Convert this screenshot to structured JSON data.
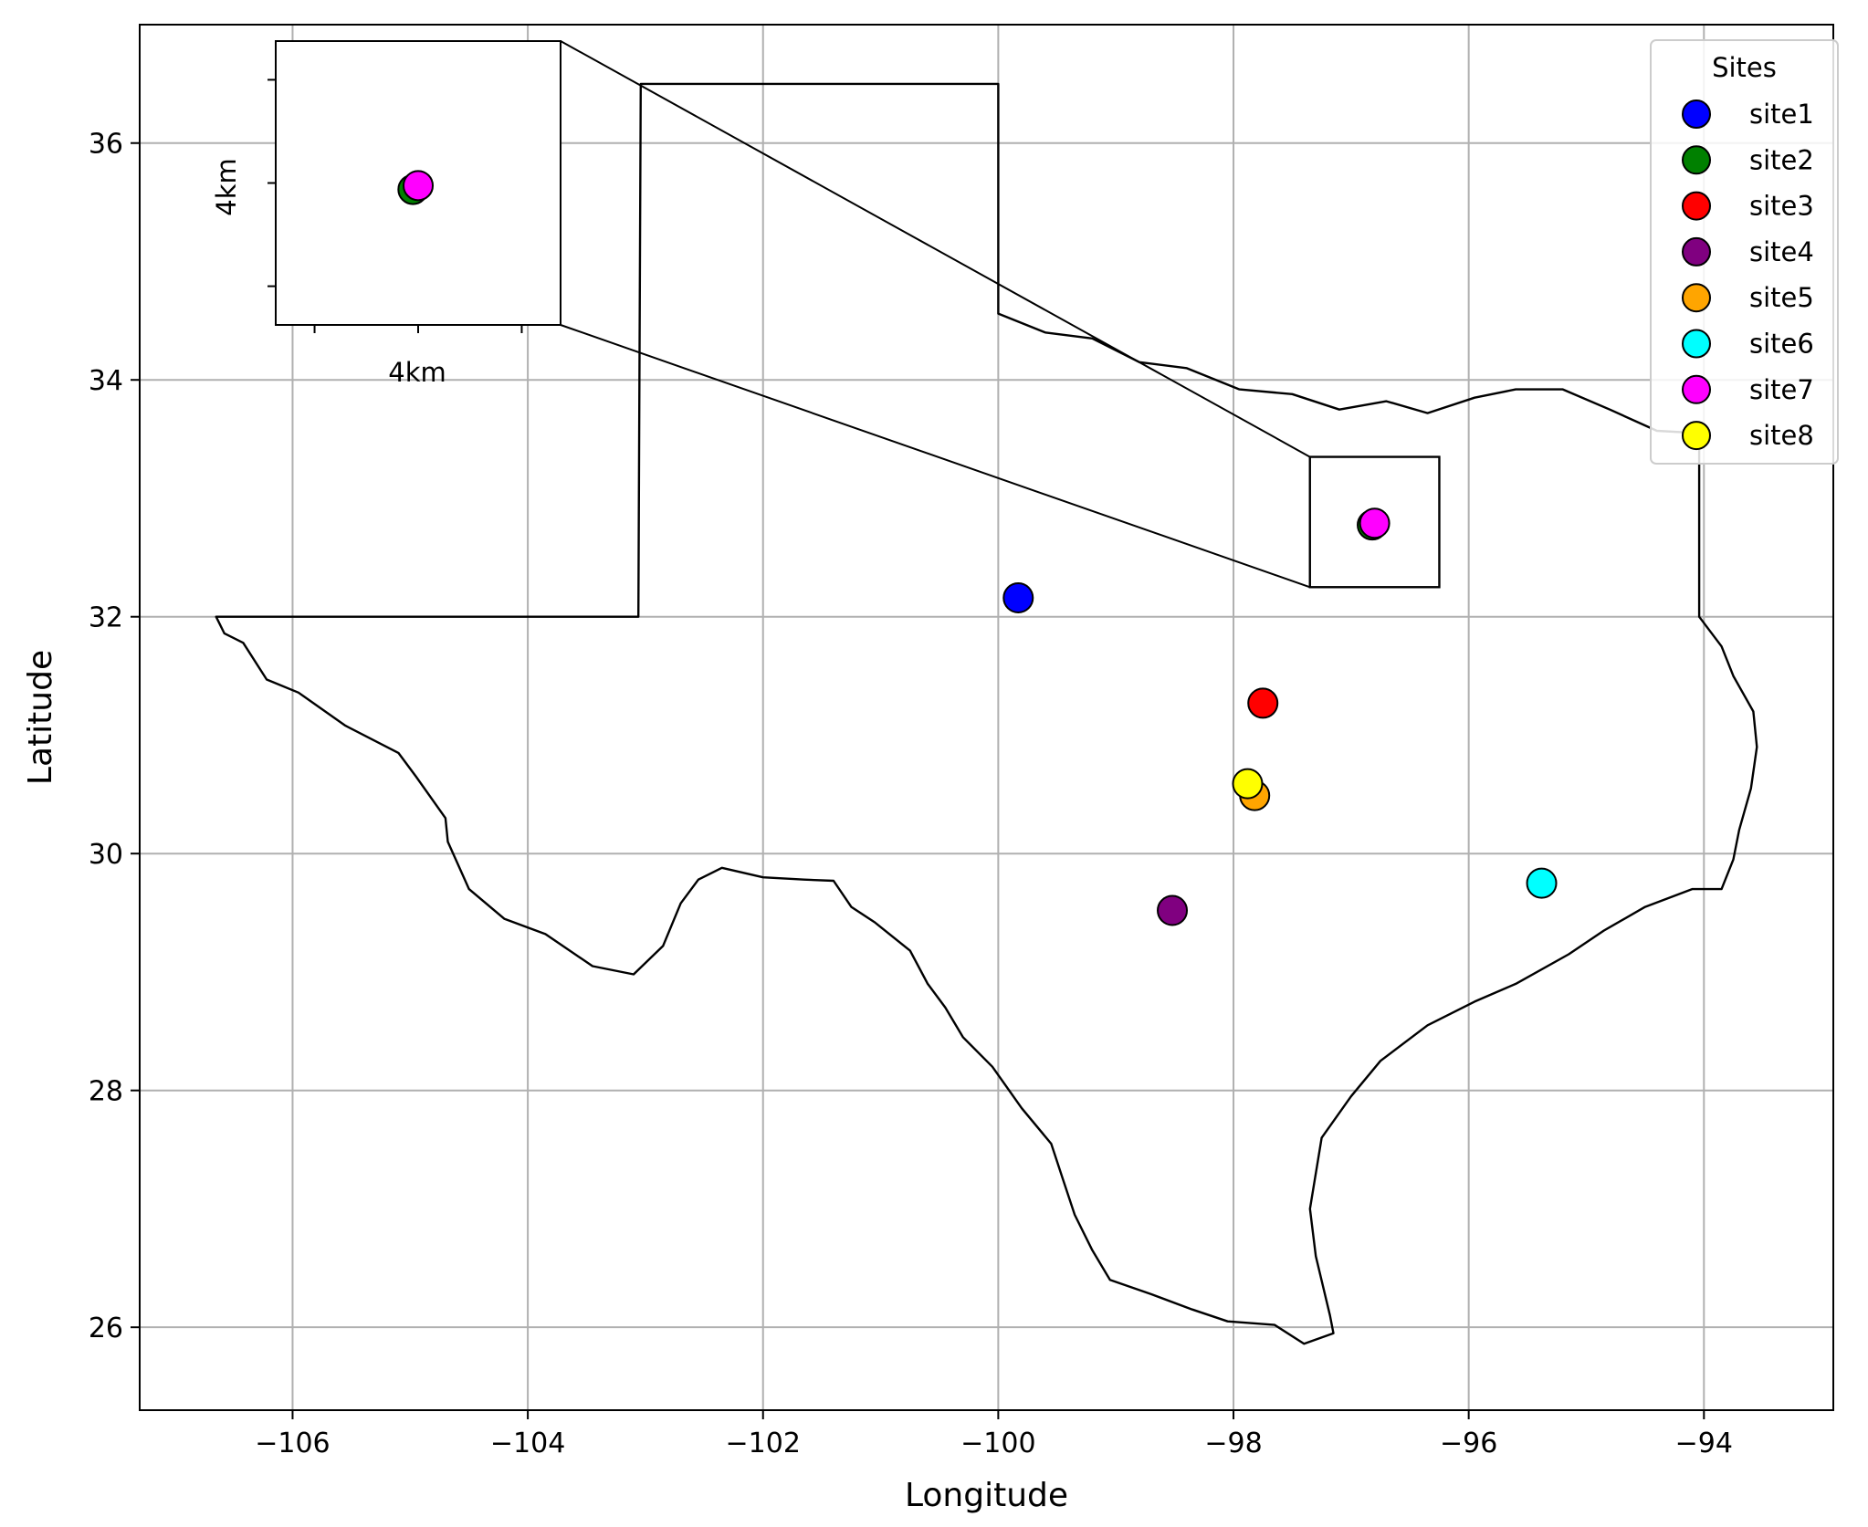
{
  "chart_data": {
    "type": "scatter",
    "xlabel": "Longitude",
    "ylabel": "Latitude",
    "xlim": [
      -107.3,
      -92.9
    ],
    "ylim": [
      25.3,
      37.0
    ],
    "xticks": [
      -106,
      -104,
      -102,
      -100,
      -98,
      -96,
      -94
    ],
    "xtick_labels": [
      "−106",
      "−104",
      "−102",
      "−100",
      "−98",
      "−96",
      "−94"
    ],
    "yticks": [
      26,
      28,
      30,
      32,
      34,
      36
    ],
    "ytick_labels": [
      "26",
      "28",
      "30",
      "32",
      "34",
      "36"
    ],
    "grid": true,
    "legend": {
      "title": "Sites",
      "placement": "top-right"
    },
    "series": [
      {
        "name": "site1",
        "color": "#0000ff",
        "x": -99.83,
        "y": 32.16
      },
      {
        "name": "site2",
        "color": "#008000",
        "x": -96.82,
        "y": 32.775
      },
      {
        "name": "site3",
        "color": "#ff0000",
        "x": -97.75,
        "y": 31.27
      },
      {
        "name": "site4",
        "color": "#800080",
        "x": -98.52,
        "y": 29.52
      },
      {
        "name": "site5",
        "color": "#ffa500",
        "x": -97.82,
        "y": 30.49
      },
      {
        "name": "site6",
        "color": "#00ffff",
        "x": -95.38,
        "y": 29.75
      },
      {
        "name": "site7",
        "color": "#ff00ff",
        "x": -96.8,
        "y": 32.79
      },
      {
        "name": "site8",
        "color": "#ffff00",
        "x": -97.88,
        "y": 30.59
      }
    ],
    "inset": {
      "xlim": [
        -97.35,
        -96.25
      ],
      "ylim": [
        32.25,
        33.35
      ],
      "xlabel": "4km",
      "ylabel": "4km"
    },
    "boundary": "Texas state outline"
  }
}
